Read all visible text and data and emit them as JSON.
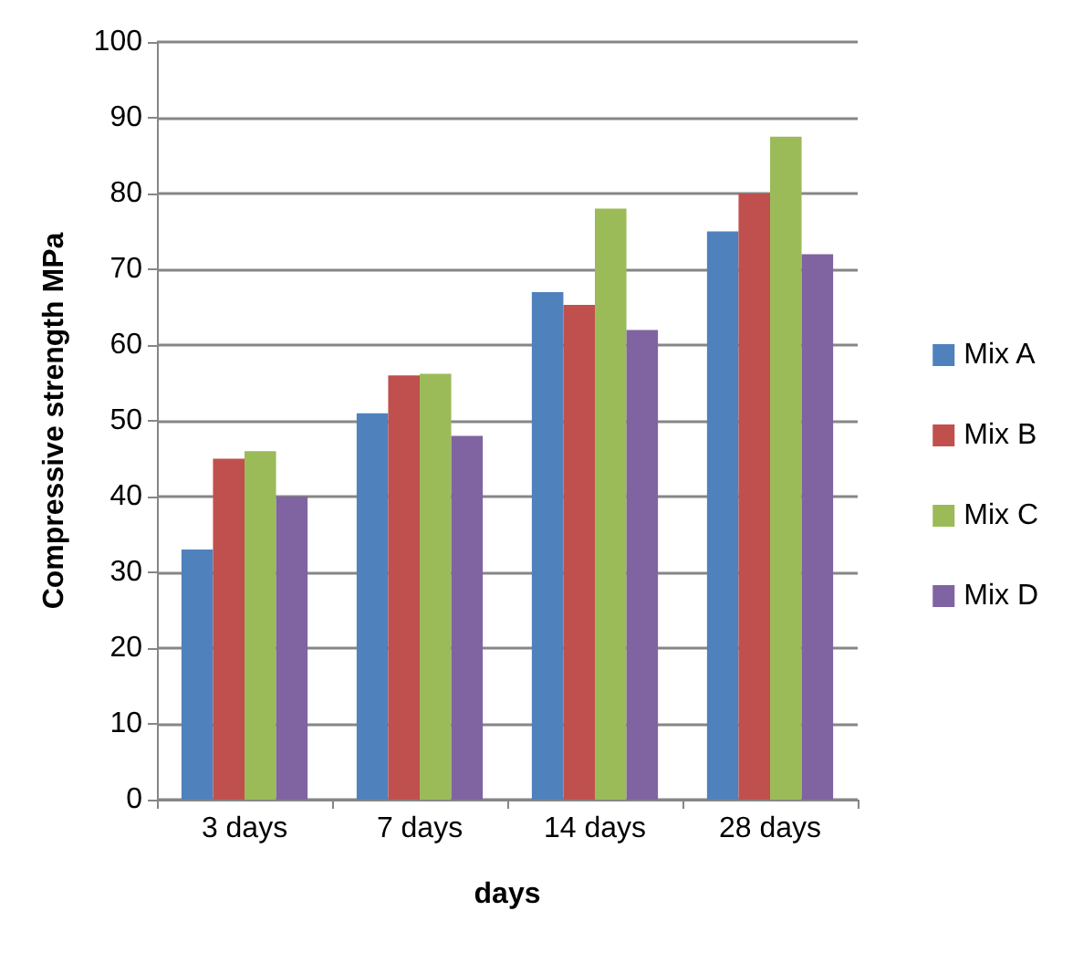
{
  "chart_data": {
    "type": "bar",
    "xlabel": "days",
    "ylabel": "Compressive strength MPa",
    "categories": [
      "3 days",
      "7 days",
      "14 days",
      "28 days"
    ],
    "series": [
      {
        "name": "Mix A",
        "color": "#4f81bd",
        "values": [
          33,
          51,
          67,
          75
        ]
      },
      {
        "name": "Mix B",
        "color": "#c0504d",
        "values": [
          45,
          56,
          65.3,
          80
        ]
      },
      {
        "name": "Mix C",
        "color": "#9bbb59",
        "values": [
          46,
          56.2,
          78,
          87.5
        ]
      },
      {
        "name": "Mix D",
        "color": "#8064a2",
        "values": [
          40,
          48,
          62,
          72
        ]
      }
    ],
    "ylim": [
      0,
      100
    ],
    "yticks": [
      0,
      10,
      20,
      30,
      40,
      50,
      60,
      70,
      80,
      90,
      100
    ],
    "grid": "y",
    "legend": "right"
  }
}
